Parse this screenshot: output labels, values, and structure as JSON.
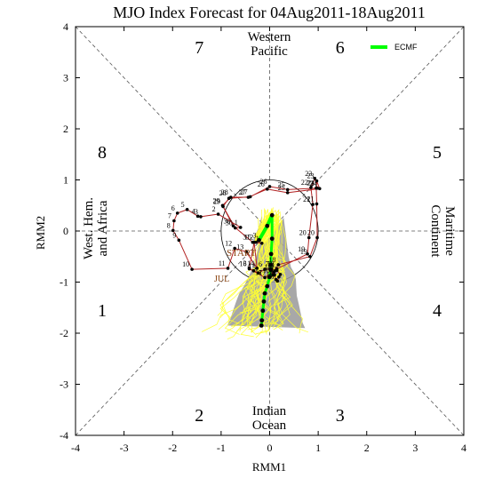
{
  "chart_data": {
    "type": "scatter",
    "title": "MJO Index Forecast for 04Aug2011-18Aug2011",
    "xlabel": "RMM1",
    "ylabel": "RMM2",
    "xlim": [
      -4,
      4
    ],
    "ylim": [
      -4,
      4
    ],
    "xticks": [
      "-4",
      "-3",
      "-2",
      "-1",
      "0",
      "1",
      "2",
      "3",
      "4"
    ],
    "yticks": [
      "-4",
      "-3",
      "-2",
      "-1",
      "0",
      "1",
      "2",
      "3",
      "4"
    ],
    "grid": "dashed diagonals and axes",
    "phase_labels": [
      {
        "label": "1",
        "x": -3.45,
        "y": -1.55
      },
      {
        "label": "2",
        "x": -1.45,
        "y": -3.6
      },
      {
        "label": "3",
        "x": 1.45,
        "y": -3.6
      },
      {
        "label": "4",
        "x": 3.45,
        "y": -1.55
      },
      {
        "label": "5",
        "x": 3.45,
        "y": 1.55
      },
      {
        "label": "6",
        "x": 1.45,
        "y": 3.6
      },
      {
        "label": "7",
        "x": -1.45,
        "y": 3.6
      },
      {
        "label": "8",
        "x": -3.45,
        "y": 1.55
      }
    ],
    "region_labels": {
      "top": [
        "Western",
        "Pacific"
      ],
      "bottom": [
        "Indian",
        "Ocean"
      ],
      "left": [
        "West. Hem.",
        "and Africa"
      ],
      "right": [
        "Maritime",
        "Continent"
      ]
    },
    "unit_circle_radius": 1,
    "legend": {
      "placement": "top-right",
      "entries": [
        {
          "name": "ECMF",
          "color": "#00ff00"
        }
      ]
    },
    "colors": {
      "observed": "#b22222",
      "ensemble": "#ffff33",
      "spread": "#999999",
      "forecast": "#00ff00"
    },
    "observed_path": {
      "month_label": "JUL",
      "start_label": "START",
      "points": [
        {
          "day": "3",
          "x": -0.42,
          "y": -0.73
        },
        {
          "day": "4",
          "x": -0.33,
          "y": -0.78
        },
        {
          "day": "5",
          "x": -0.23,
          "y": -0.82
        },
        {
          "day": "6",
          "x": -0.1,
          "y": -0.75
        },
        {
          "day": "7",
          "x": 0.04,
          "y": -0.74
        },
        {
          "day": "8",
          "x": 0.11,
          "y": -0.78
        },
        {
          "day": "9",
          "x": 0.1,
          "y": -0.86
        },
        {
          "day": "10",
          "x": 0.13,
          "y": -0.95
        },
        {
          "day": "11",
          "x": 0.16,
          "y": -0.98
        },
        {
          "day": "12",
          "x": 0.19,
          "y": -0.9
        },
        {
          "day": "13",
          "x": 0.22,
          "y": -0.85
        },
        {
          "day": "14",
          "x": 0.15,
          "y": -0.77
        },
        {
          "day": "15",
          "x": 0.09,
          "y": -0.8
        },
        {
          "day": "16",
          "x": 0.06,
          "y": -0.86
        },
        {
          "day": "17",
          "x": -0.02,
          "y": -0.91
        },
        {
          "day": "18",
          "x": 0.18,
          "y": -0.66
        },
        {
          "day": "19",
          "x": 0.83,
          "y": -0.5
        },
        {
          "day": "20",
          "x": 0.98,
          "y": -0.13
        },
        {
          "day": "21",
          "x": 0.97,
          "y": 0.53
        },
        {
          "day": "22",
          "x": 0.96,
          "y": 0.84
        },
        {
          "day": "23",
          "x": 0.97,
          "y": 0.98
        },
        {
          "day": "24",
          "x": 1.03,
          "y": 0.83
        },
        {
          "day": "25",
          "x": 0.37,
          "y": 0.75
        },
        {
          "day": "26",
          "x": -0.05,
          "y": 0.82
        },
        {
          "day": "27",
          "x": -0.44,
          "y": 0.66
        },
        {
          "day": "28",
          "x": -0.8,
          "y": 0.66
        },
        {
          "day": "29",
          "x": -0.97,
          "y": 0.5
        },
        {
          "day": "30",
          "x": -0.71,
          "y": 0.06
        },
        {
          "day": "1",
          "x": -0.6,
          "y": 0.07
        },
        {
          "day": "2",
          "x": -1.06,
          "y": 0.33
        },
        {
          "day": "3",
          "x": -1.42,
          "y": 0.28
        },
        {
          "day": "4",
          "x": -1.48,
          "y": 0.29
        },
        {
          "day": "5",
          "x": -1.7,
          "y": 0.42
        },
        {
          "day": "6",
          "x": -1.9,
          "y": 0.35
        },
        {
          "day": "7",
          "x": -1.97,
          "y": 0.2
        },
        {
          "day": "8",
          "x": -1.99,
          "y": 0.01
        },
        {
          "day": "9",
          "x": -1.87,
          "y": -0.18
        },
        {
          "day": "10",
          "x": -1.6,
          "y": -0.75
        },
        {
          "day": "11",
          "x": -0.86,
          "y": -0.73
        },
        {
          "day": "12",
          "x": -0.72,
          "y": -0.34
        },
        {
          "day": "13",
          "x": -0.48,
          "y": -0.41
        },
        {
          "day": "14",
          "x": -0.26,
          "y": -0.73
        },
        {
          "day": "15",
          "x": -0.32,
          "y": -0.22
        },
        {
          "day": "16",
          "x": -0.42,
          "y": -0.74
        },
        {
          "day": "17",
          "x": -0.1,
          "y": -0.91
        },
        {
          "day": "18",
          "x": 0.15,
          "y": -0.74
        },
        {
          "day": "19",
          "x": 0.78,
          "y": -0.45
        },
        {
          "day": "20",
          "x": 0.81,
          "y": -0.13
        },
        {
          "day": "21",
          "x": 0.89,
          "y": 0.52
        },
        {
          "day": "22",
          "x": 0.85,
          "y": 0.85
        },
        {
          "day": "23",
          "x": 0.93,
          "y": 1.03
        },
        {
          "day": "24",
          "x": 0.98,
          "y": 0.84
        },
        {
          "day": "25",
          "x": 0.37,
          "y": 0.81
        },
        {
          "day": "26",
          "x": 0.0,
          "y": 0.87
        },
        {
          "day": "27",
          "x": -0.4,
          "y": 0.67
        },
        {
          "day": "28",
          "x": -0.84,
          "y": 0.64
        },
        {
          "day": "29",
          "x": -0.96,
          "y": 0.48
        },
        {
          "day": "30",
          "x": -0.75,
          "y": 0.1
        },
        {
          "day": "31",
          "x": -0.35,
          "y": -0.22
        },
        {
          "day": "1",
          "x": -0.16,
          "y": -0.24
        },
        {
          "day": "2",
          "x": -0.28,
          "y": -0.22
        },
        {
          "day": "3",
          "x": -0.22,
          "y": -0.18
        }
      ]
    },
    "ensemble_mean_forecast": [
      {
        "x": -0.22,
        "y": -0.18
      },
      {
        "x": -0.05,
        "y": 0.1
      },
      {
        "x": 0.05,
        "y": 0.31
      },
      {
        "x": 0.05,
        "y": -0.15
      },
      {
        "x": 0.03,
        "y": -0.45
      },
      {
        "x": 0.02,
        "y": -0.66
      },
      {
        "x": 0.02,
        "y": -0.76
      },
      {
        "x": 0.0,
        "y": -0.9
      },
      {
        "x": -0.05,
        "y": -1.08
      },
      {
        "x": -0.1,
        "y": -1.22
      },
      {
        "x": -0.12,
        "y": -1.38
      },
      {
        "x": -0.14,
        "y": -1.56
      },
      {
        "x": -0.16,
        "y": -1.75
      },
      {
        "x": -0.17,
        "y": -1.85
      }
    ]
  }
}
